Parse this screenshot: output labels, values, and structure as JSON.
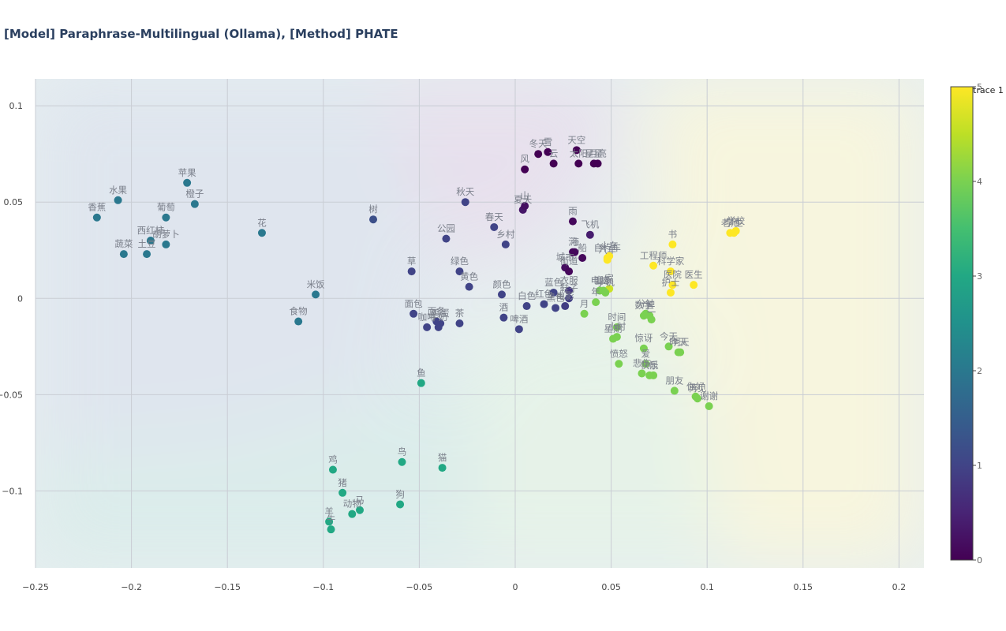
{
  "chart_data": {
    "type": "scatter",
    "title": "[Model] Paraphrase-Multilingual (Ollama), [Method] PHATE",
    "xlim": [
      -0.25,
      0.213
    ],
    "ylim": [
      -0.14,
      0.114
    ],
    "x_ticks": [
      -0.25,
      -0.2,
      -0.15,
      -0.1,
      -0.05,
      0,
      0.05,
      0.1,
      0.15,
      0.2
    ],
    "y_ticks": [
      -0.1,
      -0.05,
      0,
      0.05,
      0.1
    ],
    "x_tick_labels": [
      "−0.25",
      "−0.2",
      "−0.15",
      "−0.1",
      "−0.05",
      "0",
      "0.05",
      "0.1",
      "0.15",
      "0.2"
    ],
    "y_tick_labels": [
      "−0.1",
      "−0.05",
      "0",
      "0.05",
      "0.1"
    ],
    "grid": true,
    "legend": {
      "name": "trace 1",
      "placement": "top-right"
    },
    "colorbar": {
      "min": 0,
      "max": 5,
      "ticks": [
        0,
        1,
        2,
        3,
        4,
        5
      ],
      "colorscale": "viridis"
    },
    "points": [
      {
        "label": "冬天",
        "x": 0.012,
        "y": 0.075,
        "c": 0
      },
      {
        "label": "雪",
        "x": 0.017,
        "y": 0.076,
        "c": 0
      },
      {
        "label": "天空",
        "x": 0.032,
        "y": 0.077,
        "c": 0
      },
      {
        "label": "风",
        "x": 0.005,
        "y": 0.067,
        "c": 0
      },
      {
        "label": "云",
        "x": 0.02,
        "y": 0.07,
        "c": 0
      },
      {
        "label": "太阳",
        "x": 0.033,
        "y": 0.07,
        "c": 0
      },
      {
        "label": "星星",
        "x": 0.041,
        "y": 0.07,
        "c": 0
      },
      {
        "label": "月亮",
        "x": 0.043,
        "y": 0.07,
        "c": 0
      },
      {
        "label": "夏天",
        "x": 0.004,
        "y": 0.046,
        "c": 0.3
      },
      {
        "label": "山",
        "x": 0.005,
        "y": 0.048,
        "c": 0.2
      },
      {
        "label": "雨",
        "x": 0.03,
        "y": 0.04,
        "c": 0.1
      },
      {
        "label": "飞机",
        "x": 0.039,
        "y": 0.033,
        "c": 0.4
      },
      {
        "label": "河",
        "x": 0.03,
        "y": 0.024,
        "c": 0.1
      },
      {
        "label": "海",
        "x": 0.031,
        "y": 0.024,
        "c": 0.1
      },
      {
        "label": "船",
        "x": 0.035,
        "y": 0.021,
        "c": 0.1
      },
      {
        "label": "城市",
        "x": 0.026,
        "y": 0.016,
        "c": 0.2
      },
      {
        "label": "街道",
        "x": 0.028,
        "y": 0.014,
        "c": 0.1
      },
      {
        "label": "自行车",
        "x": 0.048,
        "y": 0.021,
        "c": 5
      },
      {
        "label": "火车",
        "x": 0.049,
        "y": 0.022,
        "c": 5
      },
      {
        "label": "汽车",
        "x": 0.048,
        "y": 0.02,
        "c": 5
      },
      {
        "label": "书",
        "x": 0.082,
        "y": 0.028,
        "c": 5
      },
      {
        "label": "老师",
        "x": 0.112,
        "y": 0.034,
        "c": 5
      },
      {
        "label": "学校",
        "x": 0.115,
        "y": 0.035,
        "c": 5
      },
      {
        "label": "学生",
        "x": 0.114,
        "y": 0.034,
        "c": 5
      },
      {
        "label": "工程师",
        "x": 0.072,
        "y": 0.017,
        "c": 5
      },
      {
        "label": "科学家",
        "x": 0.081,
        "y": 0.014,
        "c": 5
      },
      {
        "label": "医院",
        "x": 0.082,
        "y": 0.007,
        "c": 5
      },
      {
        "label": "医生",
        "x": 0.093,
        "y": 0.007,
        "c": 5
      },
      {
        "label": "护士",
        "x": 0.081,
        "y": 0.003,
        "c": 5
      },
      {
        "label": "电脑",
        "x": 0.044,
        "y": 0.004,
        "c": 4
      },
      {
        "label": "家",
        "x": 0.049,
        "y": 0.005,
        "c": 4.6
      },
      {
        "label": "音乐",
        "x": 0.046,
        "y": 0.004,
        "c": 4
      },
      {
        "label": "手机",
        "x": 0.047,
        "y": 0.003,
        "c": 4
      },
      {
        "label": "年",
        "x": 0.042,
        "y": -0.002,
        "c": 4
      },
      {
        "label": "数字",
        "x": 0.067,
        "y": -0.009,
        "c": 4
      },
      {
        "label": "分钟",
        "x": 0.068,
        "y": -0.008,
        "c": 4
      },
      {
        "label": "三",
        "x": 0.07,
        "y": -0.009,
        "c": 4
      },
      {
        "label": "二",
        "x": 0.071,
        "y": -0.011,
        "c": 4
      },
      {
        "label": "一",
        "x": 0.068,
        "y": -0.008,
        "c": 4
      },
      {
        "label": "时间",
        "x": 0.053,
        "y": -0.015,
        "c": 4
      },
      {
        "label": "月",
        "x": 0.036,
        "y": -0.008,
        "c": 4
      },
      {
        "label": "星期",
        "x": 0.051,
        "y": -0.021,
        "c": 4
      },
      {
        "label": "小时",
        "x": 0.053,
        "y": -0.02,
        "c": 4
      },
      {
        "label": "惊讶",
        "x": 0.067,
        "y": -0.026,
        "c": 4
      },
      {
        "label": "今天",
        "x": 0.08,
        "y": -0.025,
        "c": 4
      },
      {
        "label": "昨天",
        "x": 0.085,
        "y": -0.028,
        "c": 4
      },
      {
        "label": "明天",
        "x": 0.086,
        "y": -0.028,
        "c": 4
      },
      {
        "label": "愤怒",
        "x": 0.054,
        "y": -0.034,
        "c": 4
      },
      {
        "label": "爱",
        "x": 0.068,
        "y": -0.034,
        "c": 4
      },
      {
        "label": "悲伤",
        "x": 0.066,
        "y": -0.039,
        "c": 4
      },
      {
        "label": "快乐",
        "x": 0.07,
        "y": -0.04,
        "c": 4
      },
      {
        "label": "恨",
        "x": 0.072,
        "y": -0.04,
        "c": 4
      },
      {
        "label": "朋友",
        "x": 0.083,
        "y": -0.048,
        "c": 4
      },
      {
        "label": "再见",
        "x": 0.095,
        "y": -0.052,
        "c": 4
      },
      {
        "label": "你好",
        "x": 0.094,
        "y": -0.051,
        "c": 4
      },
      {
        "label": "谢谢",
        "x": 0.101,
        "y": -0.056,
        "c": 4
      },
      {
        "label": "蓝色",
        "x": 0.02,
        "y": 0.003,
        "c": 1
      },
      {
        "label": "白色",
        "x": 0.006,
        "y": -0.004,
        "c": 1
      },
      {
        "label": "红色",
        "x": 0.015,
        "y": -0.003,
        "c": 1
      },
      {
        "label": "衣服",
        "x": 0.028,
        "y": 0.004,
        "c": 0.8
      },
      {
        "label": "黑色",
        "x": 0.021,
        "y": -0.005,
        "c": 1
      },
      {
        "label": "电影",
        "x": 0.026,
        "y": -0.004,
        "c": 0.9
      },
      {
        "label": "鞋子",
        "x": 0.028,
        "y": 0,
        "c": 0.9
      },
      {
        "label": "颜色",
        "x": -0.007,
        "y": 0.002,
        "c": 1
      },
      {
        "label": "黄色",
        "x": -0.024,
        "y": 0.006,
        "c": 1
      },
      {
        "label": "绿色",
        "x": -0.029,
        "y": 0.014,
        "c": 1
      },
      {
        "label": "秋天",
        "x": -0.026,
        "y": 0.05,
        "c": 1
      },
      {
        "label": "春天",
        "x": -0.011,
        "y": 0.037,
        "c": 1
      },
      {
        "label": "公园",
        "x": -0.036,
        "y": 0.031,
        "c": 1
      },
      {
        "label": "乡村",
        "x": -0.005,
        "y": 0.028,
        "c": 1
      },
      {
        "label": "草",
        "x": -0.054,
        "y": 0.014,
        "c": 1
      },
      {
        "label": "树",
        "x": -0.074,
        "y": 0.041,
        "c": 1.2
      },
      {
        "label": "面包",
        "x": -0.053,
        "y": -0.008,
        "c": 1
      },
      {
        "label": "咖啡",
        "x": -0.046,
        "y": -0.015,
        "c": 1
      },
      {
        "label": "牛奶",
        "x": -0.04,
        "y": -0.015,
        "c": 1
      },
      {
        "label": "鸡蛋",
        "x": -0.039,
        "y": -0.013,
        "c": 1
      },
      {
        "label": "面条",
        "x": -0.041,
        "y": -0.012,
        "c": 1
      },
      {
        "label": "茶",
        "x": -0.029,
        "y": -0.013,
        "c": 1
      },
      {
        "label": "酒",
        "x": -0.006,
        "y": -0.01,
        "c": 1
      },
      {
        "label": "啤酒",
        "x": 0.002,
        "y": -0.016,
        "c": 1
      },
      {
        "label": "米饭",
        "x": -0.104,
        "y": 0.002,
        "c": 2
      },
      {
        "label": "食物",
        "x": -0.113,
        "y": -0.012,
        "c": 2
      },
      {
        "label": "花",
        "x": -0.132,
        "y": 0.034,
        "c": 2
      },
      {
        "label": "苹果",
        "x": -0.171,
        "y": 0.06,
        "c": 2
      },
      {
        "label": "水果",
        "x": -0.207,
        "y": 0.051,
        "c": 2
      },
      {
        "label": "橙子",
        "x": -0.167,
        "y": 0.049,
        "c": 2
      },
      {
        "label": "香蕉",
        "x": -0.218,
        "y": 0.042,
        "c": 2
      },
      {
        "label": "葡萄",
        "x": -0.182,
        "y": 0.042,
        "c": 2
      },
      {
        "label": "西红柿",
        "x": -0.19,
        "y": 0.03,
        "c": 2
      },
      {
        "label": "胡萝卜",
        "x": -0.182,
        "y": 0.028,
        "c": 2
      },
      {
        "label": "土豆",
        "x": -0.192,
        "y": 0.023,
        "c": 2
      },
      {
        "label": "蔬菜",
        "x": -0.204,
        "y": 0.023,
        "c": 2
      },
      {
        "label": "鱼",
        "x": -0.049,
        "y": -0.044,
        "c": 3
      },
      {
        "label": "鸟",
        "x": -0.059,
        "y": -0.085,
        "c": 3
      },
      {
        "label": "猫",
        "x": -0.038,
        "y": -0.088,
        "c": 3
      },
      {
        "label": "鸡",
        "x": -0.095,
        "y": -0.089,
        "c": 3
      },
      {
        "label": "猪",
        "x": -0.09,
        "y": -0.101,
        "c": 3
      },
      {
        "label": "狗",
        "x": -0.06,
        "y": -0.107,
        "c": 3
      },
      {
        "label": "马",
        "x": -0.081,
        "y": -0.11,
        "c": 3
      },
      {
        "label": "动物",
        "x": -0.085,
        "y": -0.112,
        "c": 3
      },
      {
        "label": "羊",
        "x": -0.097,
        "y": -0.116,
        "c": 3
      },
      {
        "label": "牛",
        "x": -0.096,
        "y": -0.12,
        "c": 3
      }
    ]
  }
}
